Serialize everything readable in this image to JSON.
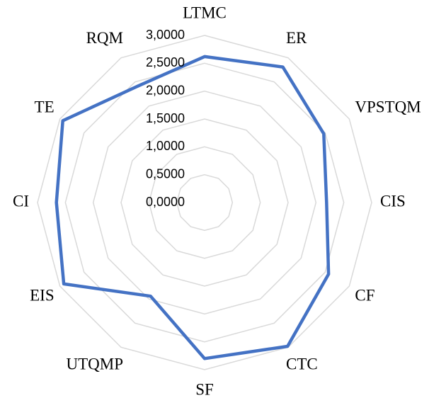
{
  "chart_data": {
    "type": "radar",
    "categories": [
      "LTMC",
      "ER",
      "VPSTQM",
      "CIS",
      "CF",
      "CTC",
      "SF",
      "UTQMP",
      "EIS",
      "CI",
      "TE",
      "RQM"
    ],
    "series": [
      {
        "color": "#4472c4",
        "values": [
          2.62,
          2.81,
          2.47,
          2.19,
          2.57,
          2.98,
          2.8,
          1.94,
          2.92,
          2.66,
          2.94,
          2.41
        ]
      }
    ],
    "ylim": [
      0,
      3
    ],
    "yticks": [
      {
        "value": 0,
        "label": "0,0000"
      },
      {
        "value": 0.5,
        "label": "0,5000"
      },
      {
        "value": 1,
        "label": "1,0000"
      },
      {
        "value": 1.5,
        "label": "1,5000"
      },
      {
        "value": 2,
        "label": "2,0000"
      },
      {
        "value": 2.5,
        "label": "2,5000"
      },
      {
        "value": 3,
        "label": "3,0000"
      }
    ],
    "grid": true
  }
}
